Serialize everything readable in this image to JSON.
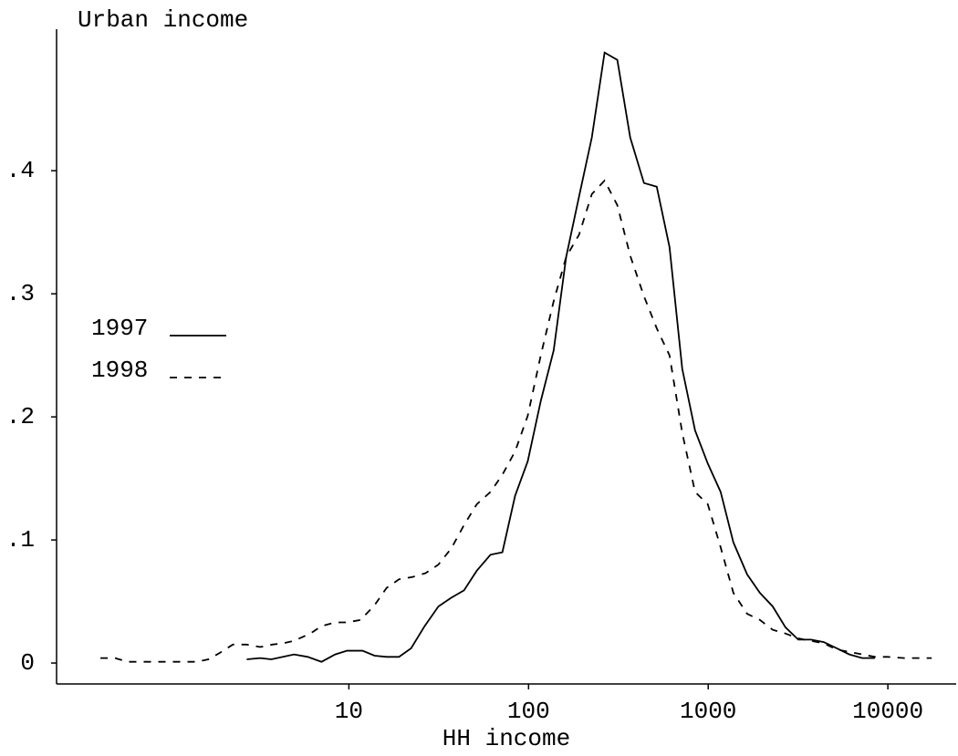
{
  "chart_data": {
    "type": "line",
    "title": "Urban income",
    "x_label": "HH income",
    "xscale": "log",
    "xlim": [
      0.236,
      24000
    ],
    "xticks": [
      10,
      100,
      1000,
      10000
    ],
    "ylim": [
      -0.017,
      0.515
    ],
    "yticks": [
      0,
      {
        "value": 0.1,
        "label": ".1"
      },
      {
        "value": 0.2,
        "label": ".2"
      },
      {
        "value": 0.3,
        "label": ".3"
      },
      {
        "value": 0.4,
        "label": ".4"
      }
    ],
    "grid": false,
    "legend_position": "center-left",
    "series": [
      {
        "name": "1997",
        "color": "#000000",
        "style": "solid",
        "x": [
          2.7,
          3.21,
          3.7,
          4.95,
          5.9,
          7.04,
          8.39,
          9.77,
          11.9,
          13.9,
          16.2,
          19.0,
          22.2,
          26.4,
          31.5,
          37.1,
          43.7,
          51.5,
          61.4,
          71.5,
          84.2,
          99,
          117,
          138,
          162,
          191,
          225,
          265,
          312,
          368,
          439,
          517,
          609,
          717,
          845,
          995,
          1173,
          1381,
          1647,
          1940,
          2285,
          2692,
          3171,
          3735,
          4400,
          5183,
          6105,
          7192,
          8470
        ],
        "values": [
          0.003,
          0.004,
          0.003,
          0.007,
          0.005,
          0.001,
          0.007,
          0.01,
          0.01,
          0.006,
          0.005,
          0.005,
          0.012,
          0.03,
          0.046,
          0.053,
          0.059,
          0.075,
          0.088,
          0.09,
          0.136,
          0.164,
          0.213,
          0.254,
          0.33,
          0.379,
          0.427,
          0.496,
          0.49,
          0.427,
          0.39,
          0.387,
          0.338,
          0.239,
          0.189,
          0.162,
          0.139,
          0.098,
          0.072,
          0.057,
          0.046,
          0.029,
          0.019,
          0.019,
          0.017,
          0.012,
          0.007,
          0.004,
          0.004
        ]
      },
      {
        "name": "1998",
        "color": "#000000",
        "style": "dashed",
        "x": [
          0.414,
          0.5,
          0.589,
          0.702,
          0.836,
          0.996,
          1.19,
          1.42,
          1.65,
          1.9,
          2.26,
          2.7,
          3.21,
          3.74,
          4.3,
          4.95,
          6.11,
          7.04,
          8.39,
          9.77,
          11.6,
          13.9,
          16.2,
          19.0,
          22.7,
          26.7,
          31.5,
          37.1,
          43.7,
          51.5,
          61.4,
          71.5,
          84.2,
          99,
          117,
          138,
          162,
          191,
          225,
          265,
          312,
          368,
          439,
          517,
          609,
          717,
          845,
          995,
          1173,
          1381,
          1647,
          1940,
          2285,
          2692,
          3171,
          3735,
          4400,
          5183,
          6105,
          7192,
          8470,
          9977,
          12330,
          14690,
          17530
        ],
        "values": [
          0.004,
          0.004,
          0.001,
          0.001,
          0.001,
          0.001,
          0.001,
          0.001,
          0.003,
          0.008,
          0.015,
          0.015,
          0.013,
          0.015,
          0.016,
          0.018,
          0.024,
          0.03,
          0.033,
          0.033,
          0.035,
          0.047,
          0.061,
          0.068,
          0.07,
          0.073,
          0.08,
          0.093,
          0.112,
          0.129,
          0.139,
          0.153,
          0.172,
          0.201,
          0.25,
          0.294,
          0.33,
          0.348,
          0.381,
          0.392,
          0.372,
          0.331,
          0.298,
          0.272,
          0.25,
          0.187,
          0.139,
          0.129,
          0.094,
          0.057,
          0.04,
          0.035,
          0.027,
          0.024,
          0.02,
          0.018,
          0.016,
          0.011,
          0.009,
          0.007,
          0.005,
          0.005,
          0.004,
          0.004,
          0.004
        ]
      }
    ]
  }
}
